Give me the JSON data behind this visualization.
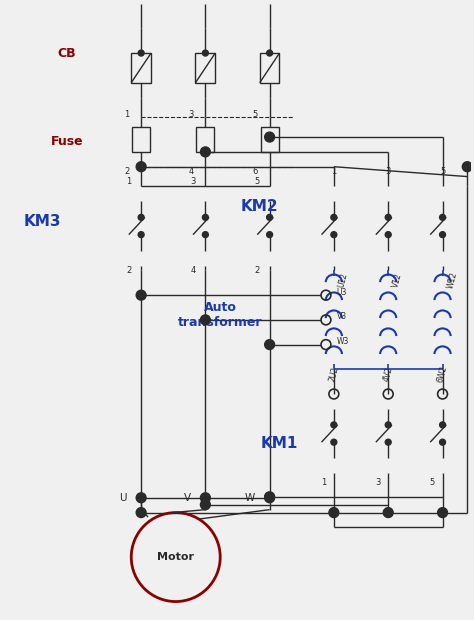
{
  "bg_color": "#f0f0f0",
  "line_color": "#2a2a2a",
  "blue_color": "#1a3aab",
  "red_color": "#8b0000",
  "coil_color": "#1a3aab",
  "CB_label": "CB",
  "Fuse_label": "Fuse",
  "KM3_label": "KM3",
  "KM2_label": "KM2",
  "KM1_label": "KM1",
  "AT_label": "Auto\ntransformer",
  "Motor_label": "Motor",
  "figsize": [
    4.74,
    6.2
  ],
  "dpi": 100
}
